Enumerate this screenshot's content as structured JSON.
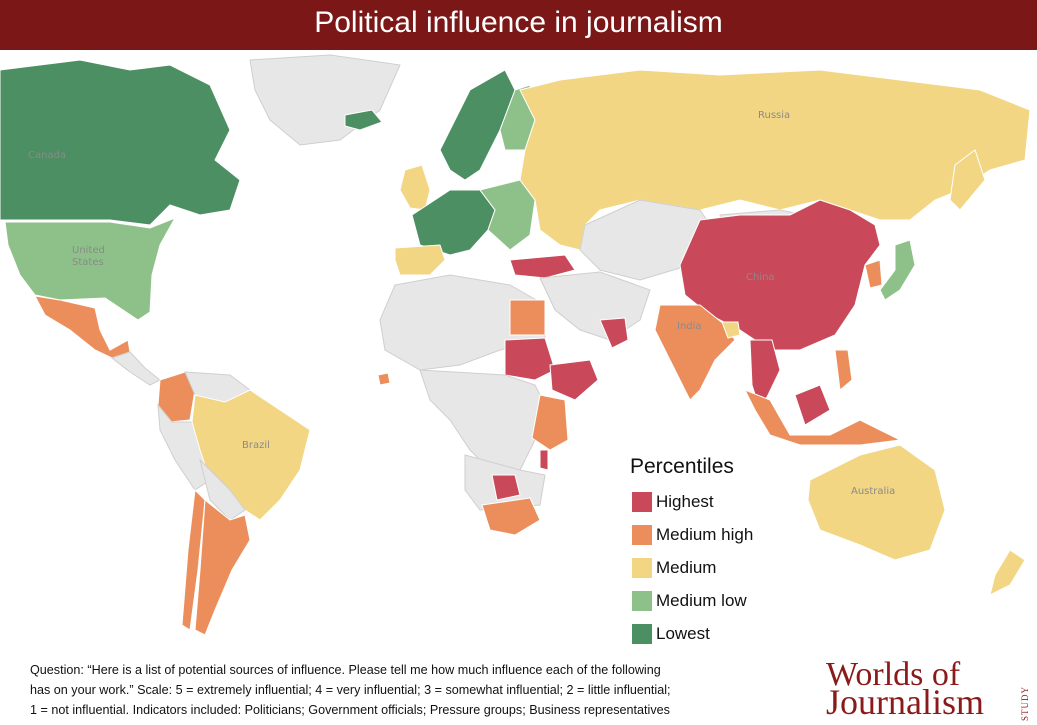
{
  "header": {
    "title": "Political influence in journalism"
  },
  "colors": {
    "highest": "#c9485a",
    "medium_high": "#ec8e5c",
    "medium": "#f2d683",
    "medium_low": "#8ec189",
    "lowest": "#4b8f62",
    "no_data": "#e7e7e7",
    "header_bg": "#7b1716"
  },
  "map": {
    "country_labels": {
      "canada": "Canada",
      "united_states_1": "United",
      "united_states_2": "States",
      "russia": "Russia",
      "china": "China",
      "india": "India",
      "brazil": "Brazil",
      "australia": "Australia"
    }
  },
  "legend": {
    "title": "Percentiles",
    "items": [
      {
        "label": "Highest",
        "color": "#c9485a"
      },
      {
        "label": "Medium high",
        "color": "#ec8e5c"
      },
      {
        "label": "Medium",
        "color": "#f2d683"
      },
      {
        "label": "Medium low",
        "color": "#8ec189"
      },
      {
        "label": "Lowest",
        "color": "#4b8f62"
      }
    ]
  },
  "footnote": {
    "line1": "Question: “Here is a list of potential sources of influence. Please tell me how much influence each of the following",
    "line2": "has on your work.” Scale: 5 = extremely influential; 4 = very influential; 3 = somewhat influential; 2 = little influential;",
    "line3": "1 = not influential. Indicators included: Politicians; Government officials; Pressure groups; Business representatives"
  },
  "logo": {
    "line1": "Worlds of",
    "line2": "Journalism",
    "side": "STUDY"
  }
}
